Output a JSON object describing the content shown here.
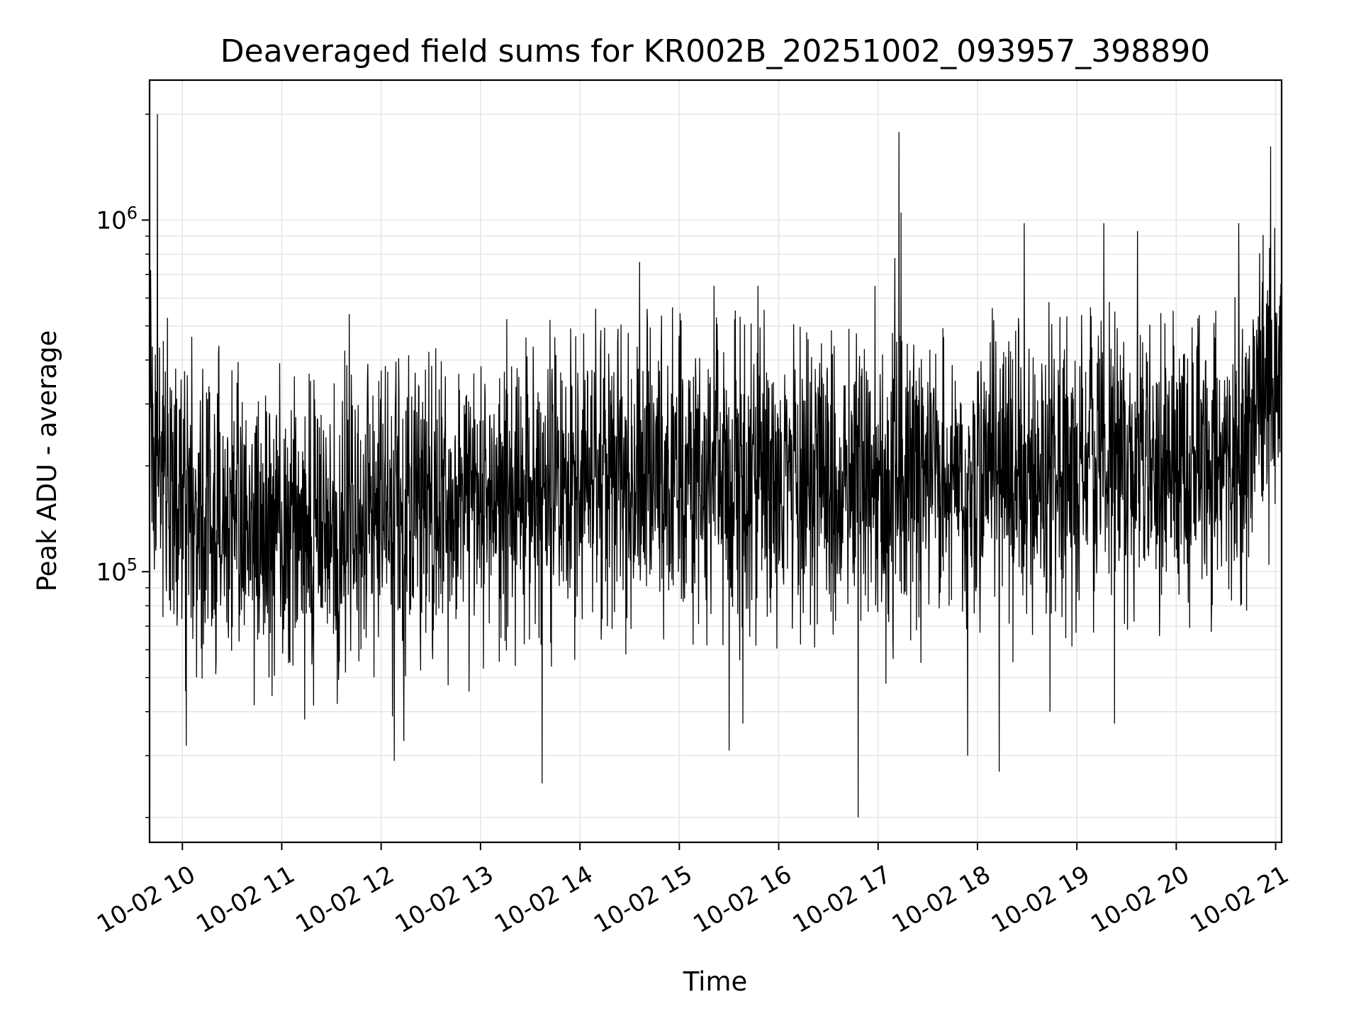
{
  "chart_data": {
    "type": "line",
    "title": "Deaveraged field sums for KR002B_20251002_093957_398890",
    "xlabel": "Time",
    "ylabel": "Peak ADU - average",
    "yscale": "log",
    "ylim": [
      17000,
      2500000
    ],
    "xlim_hours": [
      9.67,
      21.06
    ],
    "grid": true,
    "grid_minor": true,
    "line_color": "#000000",
    "grid_color": "#e6e6e6",
    "x_ticks": [
      {
        "hour": 10,
        "label": "10-02 10"
      },
      {
        "hour": 11,
        "label": "10-02 11"
      },
      {
        "hour": 12,
        "label": "10-02 12"
      },
      {
        "hour": 13,
        "label": "10-02 13"
      },
      {
        "hour": 14,
        "label": "10-02 14"
      },
      {
        "hour": 15,
        "label": "10-02 15"
      },
      {
        "hour": 16,
        "label": "10-02 16"
      },
      {
        "hour": 17,
        "label": "10-02 17"
      },
      {
        "hour": 18,
        "label": "10-02 18"
      },
      {
        "hour": 19,
        "label": "10-02 19"
      },
      {
        "hour": 20,
        "label": "10-02 20"
      },
      {
        "hour": 21,
        "label": "10-02 21"
      }
    ],
    "y_ticks": [
      {
        "value": 100000,
        "base": "10",
        "exp": "5"
      },
      {
        "value": 1000000,
        "base": "10",
        "exp": "6"
      }
    ],
    "series": [
      {
        "name": "Deaveraged field sum",
        "baseline": {
          "hours": [
            9.67,
            10.0,
            10.5,
            11.0,
            11.5,
            12.0,
            12.5,
            13.0,
            13.5,
            14.0,
            14.5,
            15.0,
            15.5,
            16.0,
            16.5,
            17.0,
            17.5,
            18.0,
            18.5,
            19.0,
            19.5,
            20.0,
            20.5,
            20.8,
            21.06
          ],
          "values": [
            250000,
            160000,
            140000,
            135000,
            130000,
            140000,
            150000,
            160000,
            170000,
            175000,
            185000,
            195000,
            190000,
            185000,
            180000,
            175000,
            180000,
            185000,
            195000,
            200000,
            210000,
            205000,
            200000,
            300000,
            420000
          ]
        },
        "noise_sigma_dex": 0.21,
        "sample_count": 3300,
        "spikes": [
          {
            "hour": 9.75,
            "value": 2000000
          },
          {
            "hour": 9.68,
            "value": 720000
          },
          {
            "hour": 9.84,
            "value": 88000
          },
          {
            "hour": 10.04,
            "value": 32000
          },
          {
            "hour": 10.87,
            "value": 50000
          },
          {
            "hour": 11.07,
            "value": 55000
          },
          {
            "hour": 11.23,
            "value": 38000
          },
          {
            "hour": 11.68,
            "value": 540000
          },
          {
            "hour": 12.13,
            "value": 29000
          },
          {
            "hour": 12.23,
            "value": 33000
          },
          {
            "hour": 13.62,
            "value": 25000
          },
          {
            "hour": 13.7,
            "value": 520000
          },
          {
            "hour": 14.6,
            "value": 760000
          },
          {
            "hour": 15.35,
            "value": 650000
          },
          {
            "hour": 15.5,
            "value": 31000
          },
          {
            "hour": 15.64,
            "value": 37000
          },
          {
            "hour": 15.79,
            "value": 650000
          },
          {
            "hour": 16.8,
            "value": 20000
          },
          {
            "hour": 16.97,
            "value": 650000
          },
          {
            "hour": 17.17,
            "value": 780000
          },
          {
            "hour": 17.21,
            "value": 1780000
          },
          {
            "hour": 17.23,
            "value": 1050000
          },
          {
            "hour": 17.9,
            "value": 30000
          },
          {
            "hour": 18.22,
            "value": 27000
          },
          {
            "hour": 18.47,
            "value": 980000
          },
          {
            "hour": 18.73,
            "value": 40000
          },
          {
            "hour": 19.27,
            "value": 980000
          },
          {
            "hour": 19.38,
            "value": 37000
          },
          {
            "hour": 19.61,
            "value": 930000
          },
          {
            "hour": 20.63,
            "value": 980000
          },
          {
            "hour": 20.95,
            "value": 1620000
          },
          {
            "hour": 20.99,
            "value": 950000
          }
        ]
      }
    ]
  }
}
